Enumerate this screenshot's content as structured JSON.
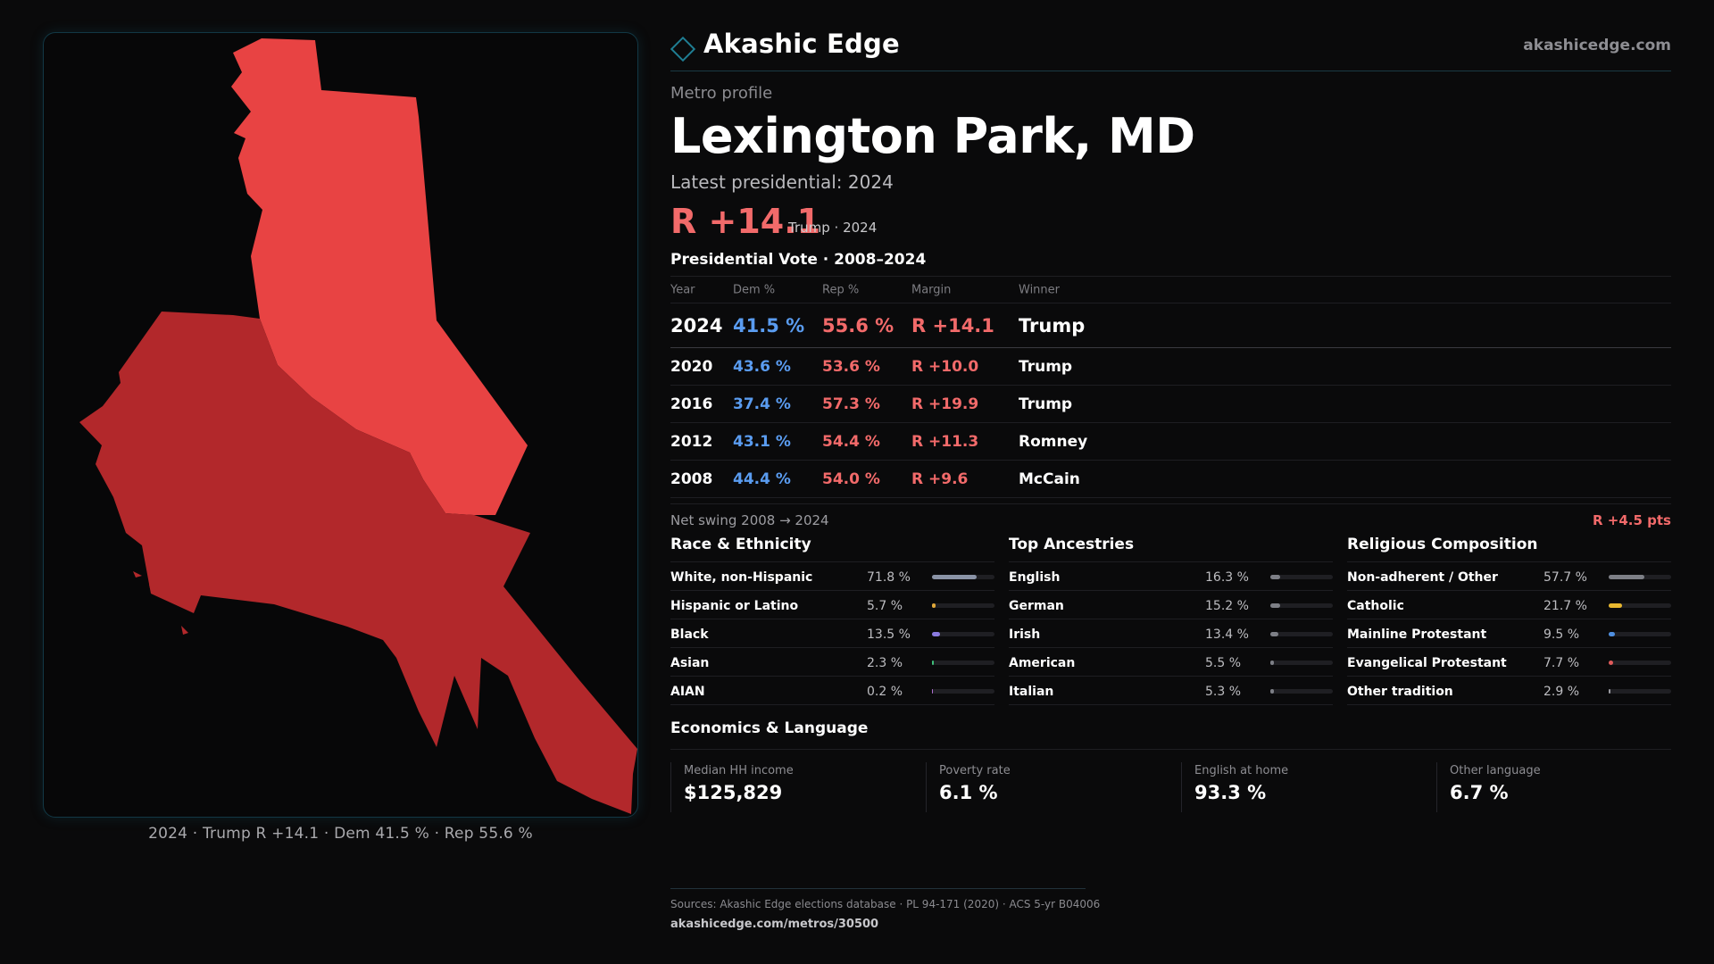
{
  "colors": {
    "background": "#0a0a0b",
    "accent": "#1f7e93",
    "dem": "#5a9cf0",
    "rep": "#f26a6a",
    "map_light": "#e84343",
    "map_dark": "#b2282b"
  },
  "header": {
    "brand": "Akashic Edge",
    "site": "akashicedge.com",
    "logo_icon": "diamond-outline-icon"
  },
  "profile": {
    "kicker": "Metro profile",
    "title": "Lexington Park, MD",
    "latest": "Latest presidential: 2024",
    "margin": "R +14.1",
    "margin_sub": "Trump · 2024"
  },
  "map": {
    "caption": "2024 · Trump R +14.1 · Dem 41.5 % · Rep 55.6 %"
  },
  "vote": {
    "title": "Presidential Vote · 2008–2024",
    "headers": [
      "Year",
      "Dem %",
      "Rep %",
      "Margin",
      "Winner"
    ],
    "rows": [
      {
        "year": "2024",
        "dem": "41.5 %",
        "rep": "55.6 %",
        "margin": "R +14.1",
        "winner": "Trump"
      },
      {
        "year": "2020",
        "dem": "43.6 %",
        "rep": "53.6 %",
        "margin": "R +10.0",
        "winner": "Trump"
      },
      {
        "year": "2016",
        "dem": "37.4 %",
        "rep": "57.3 %",
        "margin": "R +19.9",
        "winner": "Trump"
      },
      {
        "year": "2012",
        "dem": "43.1 %",
        "rep": "54.4 %",
        "margin": "R +11.3",
        "winner": "Romney"
      },
      {
        "year": "2008",
        "dem": "44.4 %",
        "rep": "54.0 %",
        "margin": "R +9.6",
        "winner": "McCain"
      }
    ],
    "swing_label": "Net swing 2008 → 2024",
    "swing_value": "R +4.5 pts"
  },
  "race": {
    "title": "Race & Ethnicity",
    "rows": [
      {
        "label": "White, non-Hispanic",
        "value": "71.8 %",
        "pct": 71.8,
        "color": "#8a93a6"
      },
      {
        "label": "Hispanic or Latino",
        "value": "5.7 %",
        "pct": 5.7,
        "color": "#e0a83a"
      },
      {
        "label": "Black",
        "value": "13.5 %",
        "pct": 13.5,
        "color": "#8b7be0"
      },
      {
        "label": "Asian",
        "value": "2.3 %",
        "pct": 2.3,
        "color": "#3fbf7a"
      },
      {
        "label": "AIAN",
        "value": "0.2 %",
        "pct": 0.2,
        "color": "#b06fd0"
      }
    ]
  },
  "ancestry": {
    "title": "Top Ancestries",
    "rows": [
      {
        "label": "English",
        "value": "16.3 %",
        "pct": 16.3,
        "color": "#7d7f86"
      },
      {
        "label": "German",
        "value": "15.2 %",
        "pct": 15.2,
        "color": "#7d7f86"
      },
      {
        "label": "Irish",
        "value": "13.4 %",
        "pct": 13.4,
        "color": "#7d7f86"
      },
      {
        "label": "American",
        "value": "5.5 %",
        "pct": 5.5,
        "color": "#7d7f86"
      },
      {
        "label": "Italian",
        "value": "5.3 %",
        "pct": 5.3,
        "color": "#7d7f86"
      }
    ]
  },
  "religion": {
    "title": "Religious Composition",
    "rows": [
      {
        "label": "Non-adherent / Other",
        "value": "57.7 %",
        "pct": 57.7,
        "color": "#7d7f86"
      },
      {
        "label": "Catholic",
        "value": "21.7 %",
        "pct": 21.7,
        "color": "#e8b72f"
      },
      {
        "label": "Mainline Protestant",
        "value": "9.5 %",
        "pct": 9.5,
        "color": "#4f8fe0"
      },
      {
        "label": "Evangelical Protestant",
        "value": "7.7 %",
        "pct": 7.7,
        "color": "#e05a5a"
      },
      {
        "label": "Other tradition",
        "value": "2.9 %",
        "pct": 2.9,
        "color": "#9a9aa0"
      }
    ]
  },
  "economics": {
    "title": "Economics & Language",
    "cards": [
      {
        "label": "Median HH income",
        "value": "$125,829"
      },
      {
        "label": "Poverty rate",
        "value": "6.1 %"
      },
      {
        "label": "English at home",
        "value": "93.3 %"
      },
      {
        "label": "Other language",
        "value": "6.7 %"
      }
    ]
  },
  "footer": {
    "sources": "Sources: Akashic Edge elections database · PL 94-171 (2020) · ACS 5-yr B04006",
    "url": "akashicedge.com/metros/30500"
  }
}
